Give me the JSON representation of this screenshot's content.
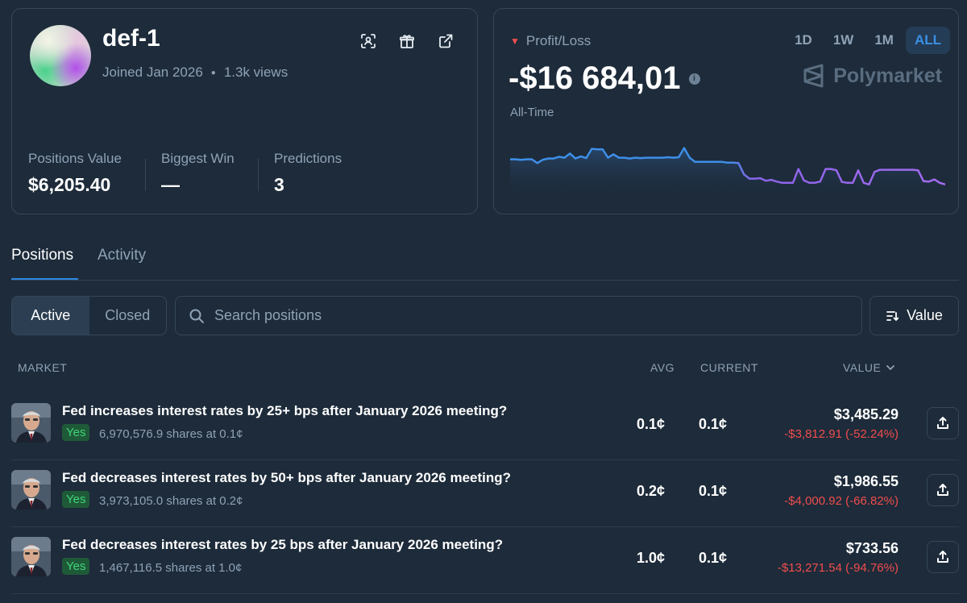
{
  "profile": {
    "username": "def-1",
    "joined": "Joined Jan 2026",
    "views": "1.3k views",
    "stats": [
      {
        "label": "Positions Value",
        "value": "$6,205.40"
      },
      {
        "label": "Biggest Win",
        "value": "—"
      },
      {
        "label": "Predictions",
        "value": "3"
      }
    ]
  },
  "pnl": {
    "label": "Profit/Loss",
    "value": "-$16 684,01",
    "period_label": "All-Time",
    "ranges": [
      "1D",
      "1W",
      "1M",
      "ALL"
    ],
    "active_range": "ALL",
    "brand": "Polymarket",
    "sparkline": [
      0.32,
      0.32,
      0.33,
      0.32,
      0.32,
      0.41,
      0.33,
      0.3,
      0.3,
      0.26,
      0.28,
      0.18,
      0.3,
      0.25,
      0.29,
      0.07,
      0.08,
      0.08,
      0.28,
      0.2,
      0.28,
      0.28,
      0.3,
      0.28,
      0.29,
      0.28,
      0.28,
      0.28,
      0.28,
      0.27,
      0.28,
      0.27,
      0.05,
      0.28,
      0.38,
      0.38,
      0.38,
      0.38,
      0.38,
      0.38,
      0.4,
      0.4,
      0.41,
      0.68,
      0.78,
      0.78,
      0.77,
      0.83,
      0.81,
      0.85,
      0.88,
      0.88,
      0.88,
      0.55,
      0.82,
      0.88,
      0.88,
      0.85,
      0.55,
      0.55,
      0.58,
      0.86,
      0.88,
      0.88,
      0.58,
      0.88,
      0.92,
      0.62,
      0.57,
      0.57,
      0.57,
      0.57,
      0.57,
      0.57,
      0.57,
      0.58,
      0.84,
      0.85,
      0.8,
      0.88,
      0.92
    ]
  },
  "tabs": [
    "Positions",
    "Activity"
  ],
  "filters": {
    "active": "Active",
    "closed": "Closed"
  },
  "search": {
    "placeholder": "Search positions"
  },
  "sort": {
    "label": "Value"
  },
  "table": {
    "headers": {
      "market": "MARKET",
      "avg": "AVG",
      "current": "CURRENT",
      "value": "VALUE"
    },
    "rows": [
      {
        "title": "Fed increases interest rates by 25+ bps after January 2026 meeting?",
        "outcome": "Yes",
        "shares": "6,970,576.9 shares at 0.1¢",
        "avg": "0.1¢",
        "current": "0.1¢",
        "value": "$3,485.29",
        "pnl": "-$3,812.91 (-52.24%)"
      },
      {
        "title": "Fed decreases interest rates by 50+ bps after January 2026 meeting?",
        "outcome": "Yes",
        "shares": "3,973,105.0 shares at 0.2¢",
        "avg": "0.2¢",
        "current": "0.1¢",
        "value": "$1,986.55",
        "pnl": "-$4,000.92 (-66.82%)"
      },
      {
        "title": "Fed decreases interest rates by 25 bps after January 2026 meeting?",
        "outcome": "Yes",
        "shares": "1,467,116.5 shares at 1.0¢",
        "avg": "1.0¢",
        "current": "0.1¢",
        "value": "$733.56",
        "pnl": "-$13,271.54 (-94.76%)"
      }
    ]
  },
  "colors": {
    "accent": "#2e87dd",
    "negative": "#f04d4d",
    "positive": "#3fd47a",
    "background": "#1d2b3a"
  },
  "icons": [
    "scan-icon",
    "gift-icon",
    "external-link-icon",
    "info-icon",
    "polymarket-logo-icon",
    "search-icon",
    "sort-icon",
    "chevron-down-icon",
    "share-icon"
  ]
}
